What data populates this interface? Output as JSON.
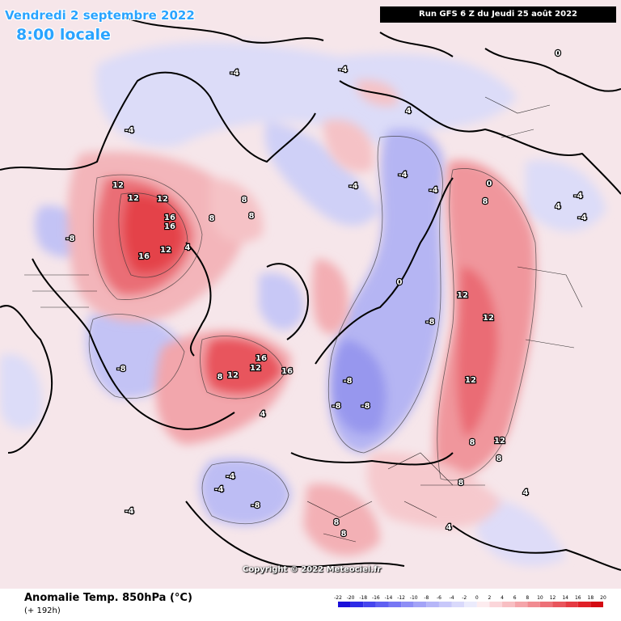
{
  "header": {
    "date": "Vendredi 2 septembre 2022",
    "time": "8:00 locale",
    "run": "Run GFS 6 Z du Jeudi 25 août 2022"
  },
  "map": {
    "projection": "north-polar-stereographic",
    "copyright": "Copyright © 2022 Meteociel.fr",
    "colors": {
      "ocean_neutral": "#f7e9ee",
      "land_outline": "#000000",
      "contour": "#333333"
    }
  },
  "footer": {
    "variable": "Anomalie Temp. 850hPa (°C)",
    "lead": "(+ 192h)"
  },
  "legend": {
    "ticks": [
      "-22",
      "-20",
      "-18",
      "-16",
      "-14",
      "-12",
      "-10",
      "-8",
      "-6",
      "-4",
      "-2",
      "0",
      "2",
      "4",
      "6",
      "8",
      "10",
      "12",
      "14",
      "16",
      "18",
      "20"
    ],
    "colors": [
      "#1a0fd9",
      "#2e2be6",
      "#4645ee",
      "#5f5ff2",
      "#7777f4",
      "#8e8ef6",
      "#a3a3f7",
      "#b6b6f8",
      "#c8c8fa",
      "#d9d9fb",
      "#ebebfc",
      "#fdecef",
      "#fbd6da",
      "#f8bfc3",
      "#f5a5aa",
      "#f18b91",
      "#ed7077",
      "#e9555c",
      "#e53a42",
      "#e02028",
      "#d40b12"
    ]
  },
  "contour_labels": [
    {
      "text": "12"
    },
    {
      "text": "12"
    },
    {
      "text": "12"
    },
    {
      "text": "16"
    },
    {
      "text": "16"
    },
    {
      "text": "16"
    },
    {
      "text": "12"
    },
    {
      "text": "8"
    },
    {
      "text": "8"
    },
    {
      "text": "8"
    },
    {
      "text": "4"
    },
    {
      "text": "-4"
    },
    {
      "text": "-4"
    },
    {
      "text": "-8"
    },
    {
      "text": "-8"
    },
    {
      "text": "-8"
    },
    {
      "text": "-4"
    },
    {
      "text": "16"
    },
    {
      "text": "16"
    },
    {
      "text": "12"
    },
    {
      "text": "12"
    },
    {
      "text": "8"
    },
    {
      "text": "-8"
    },
    {
      "text": "-8"
    },
    {
      "text": "-4"
    },
    {
      "text": "-4"
    },
    {
      "text": "-8"
    },
    {
      "text": "8"
    },
    {
      "text": "12"
    },
    {
      "text": "12"
    },
    {
      "text": "12"
    },
    {
      "text": "8"
    },
    {
      "text": "8"
    },
    {
      "text": "12"
    },
    {
      "text": "8"
    },
    {
      "text": "8"
    },
    {
      "text": "4"
    },
    {
      "text": "-4"
    },
    {
      "text": "-8"
    },
    {
      "text": "-4"
    },
    {
      "text": "-4"
    },
    {
      "text": "4"
    },
    {
      "text": "-4"
    },
    {
      "text": "0"
    },
    {
      "text": "0"
    },
    {
      "text": "0"
    },
    {
      "text": "4"
    },
    {
      "text": "8"
    },
    {
      "text": "-4"
    },
    {
      "text": "-4"
    },
    {
      "text": "4"
    },
    {
      "text": "4"
    }
  ]
}
